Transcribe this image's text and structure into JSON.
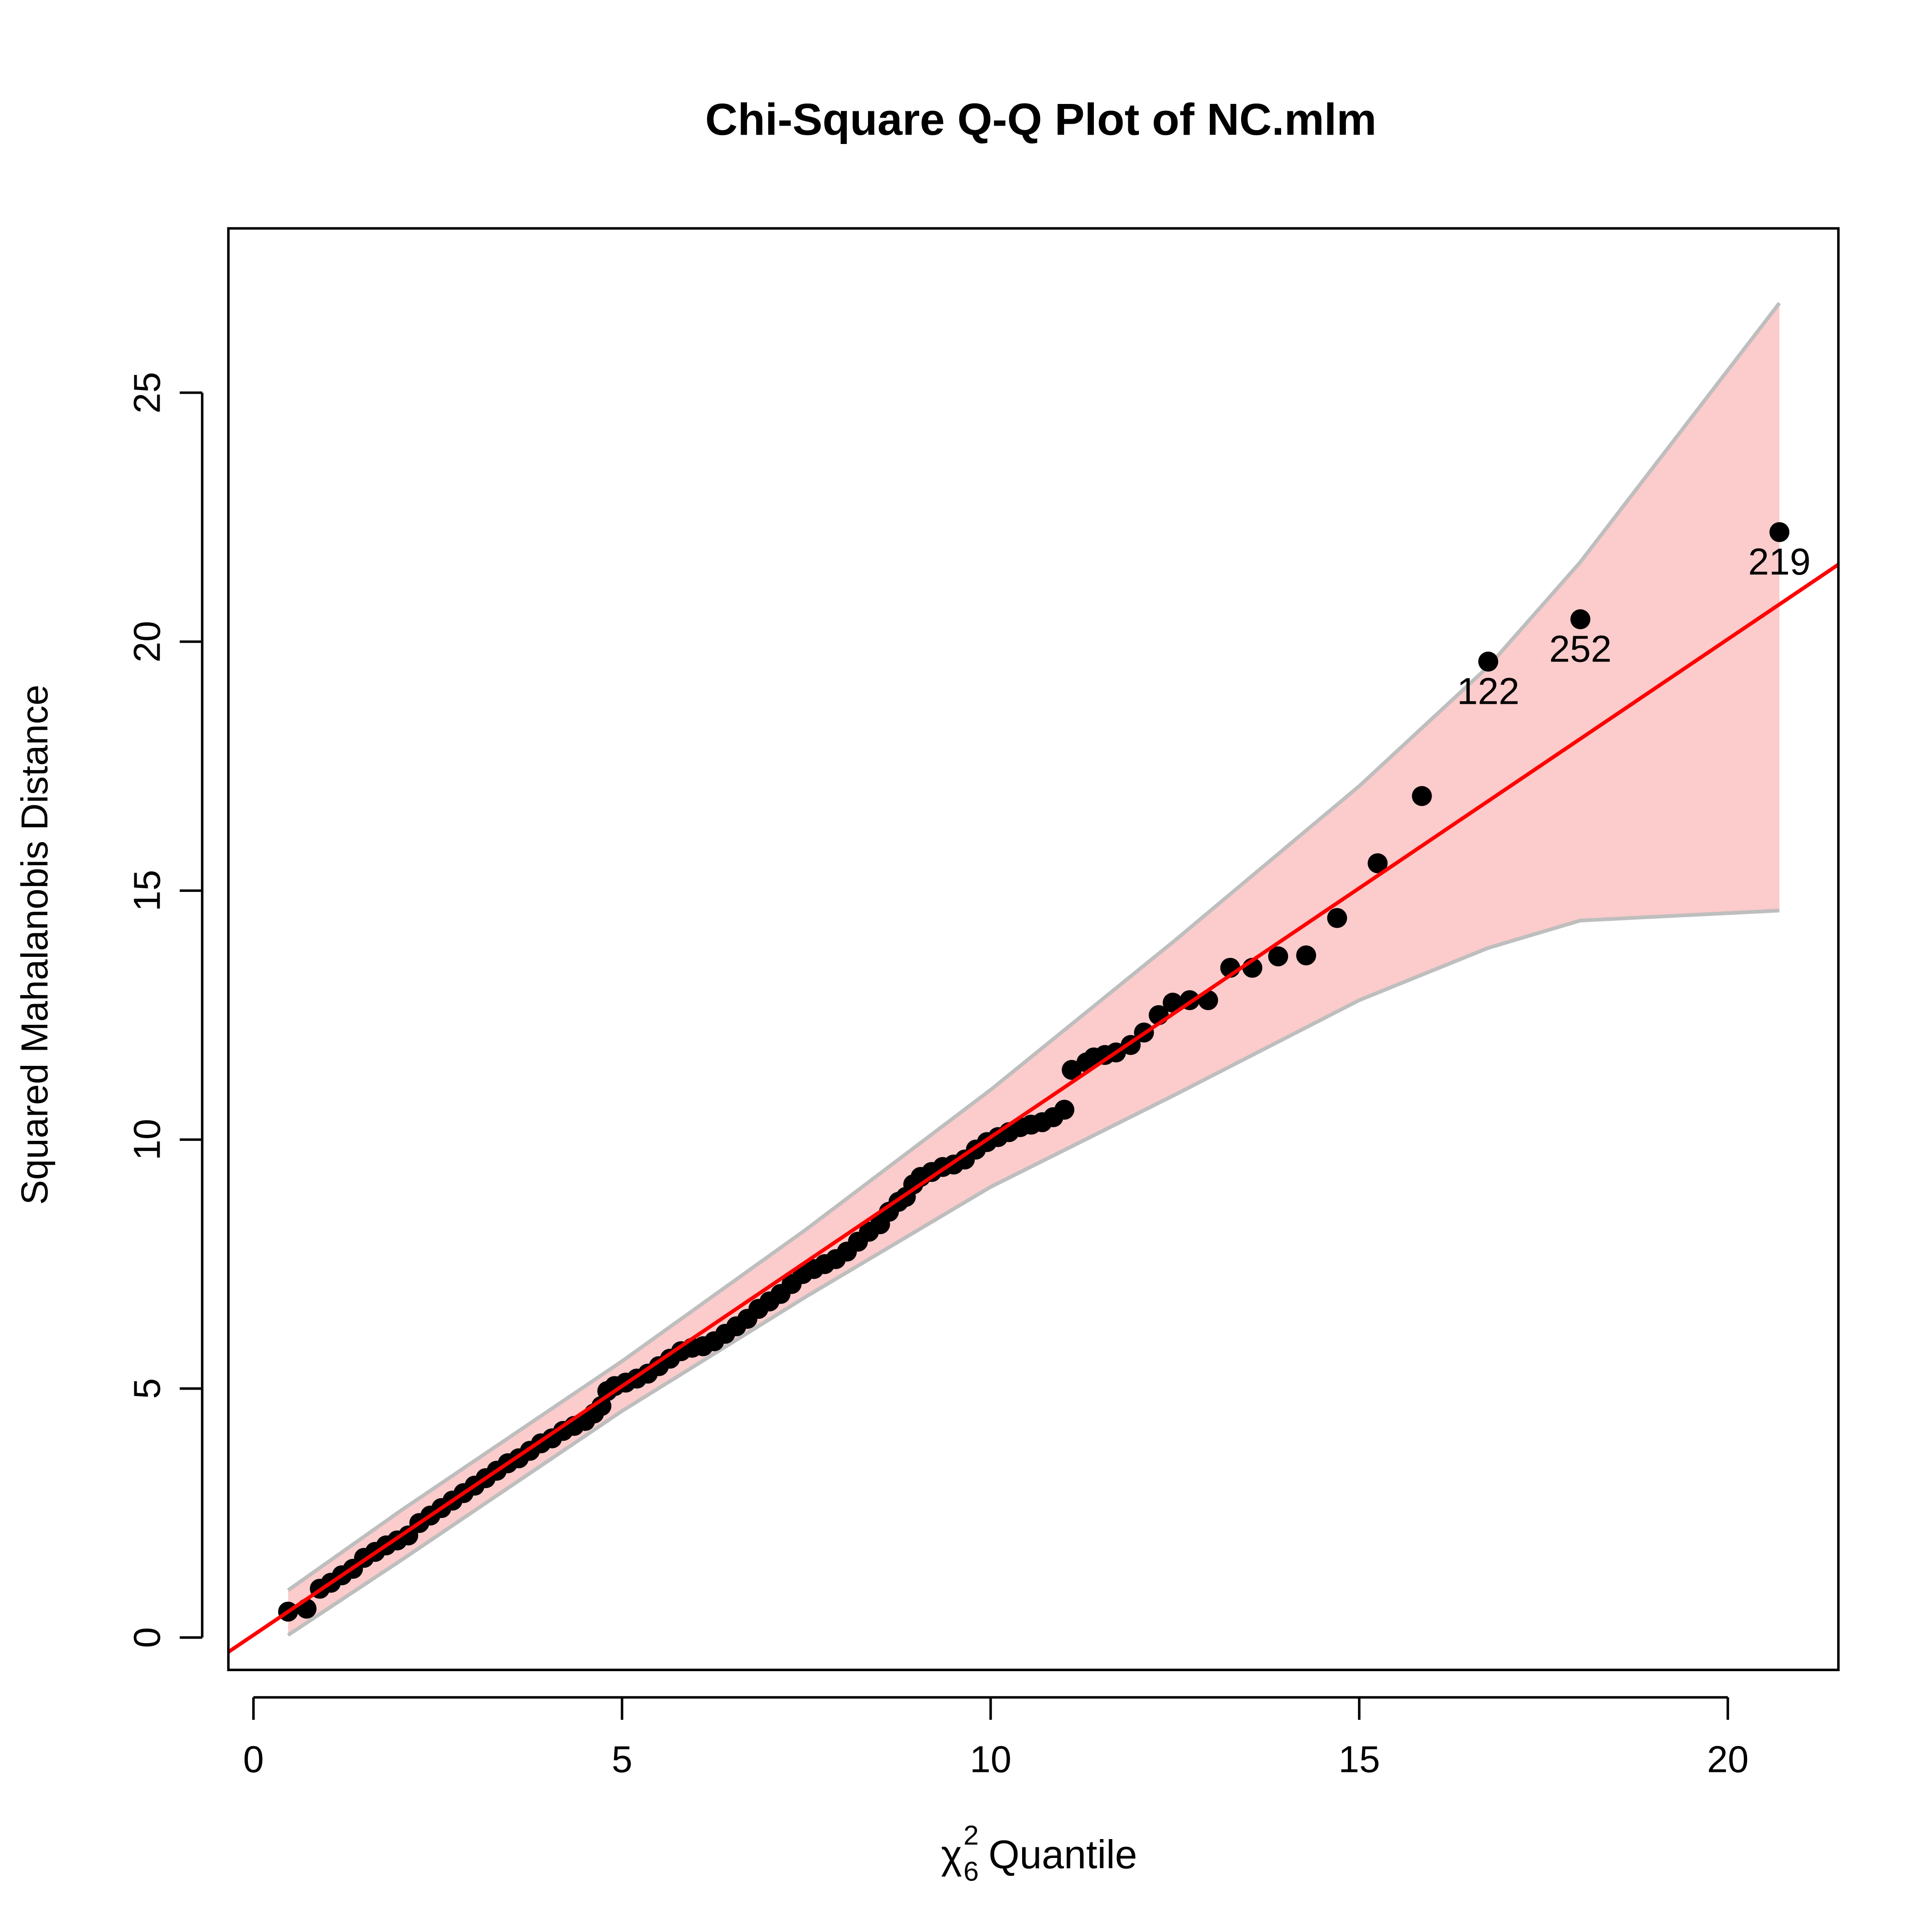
{
  "chart_data": {
    "type": "scatter",
    "title": "Chi-Square Q-Q Plot of NC.mlm",
    "xlabel": {
      "symbol": "χ",
      "subscript": "6",
      "superscript": "2",
      "text": "Quantile"
    },
    "ylabel": "Squared Mahalanobis Distance",
    "xlim": [
      -0.34,
      21.5
    ],
    "ylim": [
      -0.65,
      28.3
    ],
    "xticks": [
      "0",
      "5",
      "10",
      "15",
      "20"
    ],
    "yticks": [
      "0",
      "5",
      "10",
      "15",
      "20",
      "25"
    ],
    "grid": false,
    "colors": {
      "points": "#000000",
      "reference_line": "#ff0000",
      "envelope_fill": "#fccbcb",
      "envelope_border": "#bebebe"
    },
    "reference_line": {
      "intercept": 0.05,
      "slope": 1.0
    },
    "envelope": {
      "x": [
        0.47,
        2.0,
        5.0,
        7.5,
        10.0,
        12.5,
        15.0,
        16.75,
        18.0,
        20.7
      ],
      "upper": [
        0.95,
        2.55,
        5.55,
        8.2,
        11.0,
        14.0,
        17.1,
        19.5,
        21.6,
        26.8
      ],
      "lower": [
        0.05,
        1.55,
        4.55,
        6.85,
        9.05,
        10.9,
        12.8,
        13.85,
        14.4,
        14.6
      ]
    },
    "points": {
      "x": [
        0.47,
        0.72,
        0.9,
        1.05,
        1.2,
        1.35,
        1.5,
        1.65,
        1.8,
        1.95,
        2.1,
        2.25,
        2.4,
        2.55,
        2.7,
        2.85,
        3.0,
        3.15,
        3.3,
        3.45,
        3.6,
        3.75,
        3.9,
        4.05,
        4.2,
        4.35,
        4.5,
        4.62,
        4.72,
        4.8,
        4.9,
        5.05,
        5.2,
        5.35,
        5.5,
        5.65,
        5.8,
        5.95,
        6.1,
        6.25,
        6.4,
        6.55,
        6.7,
        6.85,
        7.0,
        7.15,
        7.3,
        7.45,
        7.6,
        7.75,
        7.9,
        8.05,
        8.2,
        8.35,
        8.5,
        8.62,
        8.75,
        8.85,
        8.95,
        9.05,
        9.2,
        9.35,
        9.5,
        9.65,
        9.8,
        9.95,
        10.1,
        10.25,
        10.4,
        10.55,
        10.7,
        10.85,
        11.0,
        11.1,
        11.3,
        11.4,
        11.55,
        11.7,
        11.9,
        12.08,
        12.28,
        12.47,
        12.7,
        12.95,
        13.25,
        13.55,
        13.9,
        14.28,
        14.7,
        15.25,
        15.85,
        16.75,
        18.0,
        20.7
      ],
      "y": [
        0.52,
        0.58,
        0.98,
        1.1,
        1.25,
        1.38,
        1.6,
        1.72,
        1.85,
        1.95,
        2.05,
        2.3,
        2.45,
        2.6,
        2.75,
        2.9,
        3.05,
        3.2,
        3.35,
        3.5,
        3.6,
        3.75,
        3.9,
        4.0,
        4.15,
        4.25,
        4.35,
        4.5,
        4.65,
        4.95,
        5.05,
        5.12,
        5.2,
        5.3,
        5.45,
        5.6,
        5.75,
        5.82,
        5.85,
        5.95,
        6.1,
        6.25,
        6.4,
        6.6,
        6.75,
        6.9,
        7.1,
        7.3,
        7.4,
        7.5,
        7.6,
        7.75,
        7.95,
        8.15,
        8.3,
        8.55,
        8.75,
        8.85,
        9.1,
        9.25,
        9.35,
        9.45,
        9.5,
        9.6,
        9.8,
        9.95,
        10.05,
        10.15,
        10.25,
        10.3,
        10.35,
        10.45,
        10.6,
        11.4,
        11.55,
        11.65,
        11.7,
        11.75,
        11.9,
        12.15,
        12.5,
        12.75,
        12.8,
        12.8,
        13.45,
        13.45,
        13.68,
        13.7,
        14.45,
        15.55,
        16.9,
        19.6,
        20.45,
        22.2
      ]
    },
    "labels": [
      {
        "text": "219",
        "x": 20.7,
        "y": 22.2
      },
      {
        "text": "252",
        "x": 18.0,
        "y": 20.45
      },
      {
        "text": "122",
        "x": 16.75,
        "y": 19.6
      }
    ]
  }
}
